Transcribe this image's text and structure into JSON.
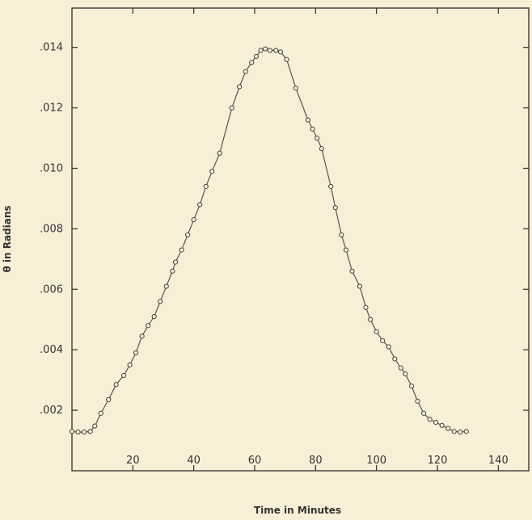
{
  "chart_data": {
    "type": "line",
    "title": "",
    "xlabel": "Time in Minutes",
    "ylabel": "θ in Radians",
    "xlim": [
      0,
      150
    ],
    "ylim": [
      0,
      0.0153
    ],
    "xticks": [
      20,
      40,
      60,
      80,
      100,
      120,
      140
    ],
    "xtick_labels": [
      "20",
      "40",
      "60",
      "80",
      "100",
      "120",
      "140"
    ],
    "yticks": [
      0.002,
      0.004,
      0.006,
      0.008,
      0.01,
      0.012,
      0.014
    ],
    "ytick_labels": [
      ".002",
      ".004",
      ".006",
      ".008",
      ".010",
      ".012",
      ".014"
    ],
    "grid": false,
    "series": [
      {
        "marker": "open-circle",
        "points": [
          [
            0,
            0.0013
          ],
          [
            2,
            0.00128
          ],
          [
            4,
            0.00128
          ],
          [
            6,
            0.0013
          ],
          [
            7.5,
            0.00148
          ],
          [
            9.5,
            0.0019
          ],
          [
            12,
            0.00235
          ],
          [
            14.5,
            0.00285
          ],
          [
            17,
            0.00315
          ],
          [
            19,
            0.0035
          ],
          [
            21,
            0.0039
          ],
          [
            23,
            0.00445
          ],
          [
            25,
            0.0048
          ],
          [
            27,
            0.0051
          ],
          [
            29,
            0.0056
          ],
          [
            31,
            0.0061
          ],
          [
            33,
            0.0066
          ],
          [
            34,
            0.0069
          ],
          [
            36,
            0.0073
          ],
          [
            38,
            0.0078
          ],
          [
            40,
            0.0083
          ],
          [
            42,
            0.0088
          ],
          [
            44,
            0.0094
          ],
          [
            46,
            0.0099
          ],
          [
            48.5,
            0.0105
          ],
          [
            52.5,
            0.012
          ],
          [
            55,
            0.0127
          ],
          [
            57,
            0.0132
          ],
          [
            59,
            0.0135
          ],
          [
            60.5,
            0.0137
          ],
          [
            62,
            0.0139
          ],
          [
            63.5,
            0.01395
          ],
          [
            65,
            0.0139
          ],
          [
            67,
            0.0139
          ],
          [
            68.5,
            0.01385
          ],
          [
            70.5,
            0.0136
          ],
          [
            73.5,
            0.01265
          ],
          [
            77.5,
            0.0116
          ],
          [
            79,
            0.0113
          ],
          [
            80.5,
            0.011
          ],
          [
            82,
            0.01065
          ],
          [
            85,
            0.0094
          ],
          [
            86.5,
            0.0087
          ],
          [
            88.5,
            0.0078
          ],
          [
            90,
            0.0073
          ],
          [
            92,
            0.0066
          ],
          [
            94.5,
            0.0061
          ],
          [
            96.5,
            0.0054
          ],
          [
            98,
            0.005
          ],
          [
            100,
            0.0046
          ],
          [
            102,
            0.0043
          ],
          [
            104,
            0.0041
          ],
          [
            106,
            0.0037
          ],
          [
            108,
            0.0034
          ],
          [
            109.5,
            0.0032
          ],
          [
            111.5,
            0.0028
          ],
          [
            113.5,
            0.0023
          ],
          [
            115.5,
            0.0019
          ],
          [
            117.5,
            0.0017
          ],
          [
            119.5,
            0.0016
          ],
          [
            121.5,
            0.0015
          ],
          [
            123.5,
            0.0014
          ],
          [
            125.5,
            0.0013
          ],
          [
            127.5,
            0.00128
          ],
          [
            129.5,
            0.0013
          ]
        ]
      }
    ]
  }
}
